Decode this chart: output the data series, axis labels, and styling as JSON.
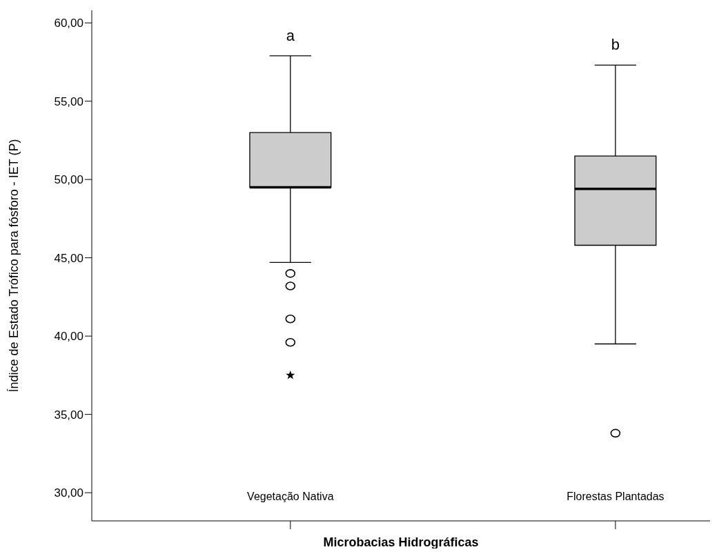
{
  "chart_data": {
    "type": "box",
    "ylabel": "Índice de Estado Trófico para fósforo - IET (P)",
    "xlabel": "Microbacias Hidrográficas",
    "categories": [
      "Vegetação Nativa",
      "Florestas Plantadas"
    ],
    "boxes": [
      {
        "low": 44.7,
        "q1": 49.5,
        "median": 49.5,
        "q3": 53.0,
        "high": 57.9,
        "outliers": [
          44.0,
          43.2,
          41.1,
          39.6,
          37.5
        ]
      },
      {
        "low": 39.5,
        "q1": 45.8,
        "median": 49.4,
        "q3": 51.5,
        "high": 57.3,
        "outliers": [
          33.8
        ]
      }
    ],
    "color": "#cccccc",
    "ylim": [
      28.2,
      60.8
    ],
    "yticks": [
      {
        "value": 30,
        "label": "30,00"
      },
      {
        "value": 35,
        "label": "35,00"
      },
      {
        "value": 40,
        "label": "40,00"
      },
      {
        "value": 45,
        "label": "45,00"
      },
      {
        "value": 50,
        "label": "50,00"
      },
      {
        "value": 55,
        "label": "55,00"
      },
      {
        "value": 60,
        "label": "60,00"
      }
    ],
    "annotations": [
      "a",
      "b"
    ],
    "grid": false
  }
}
